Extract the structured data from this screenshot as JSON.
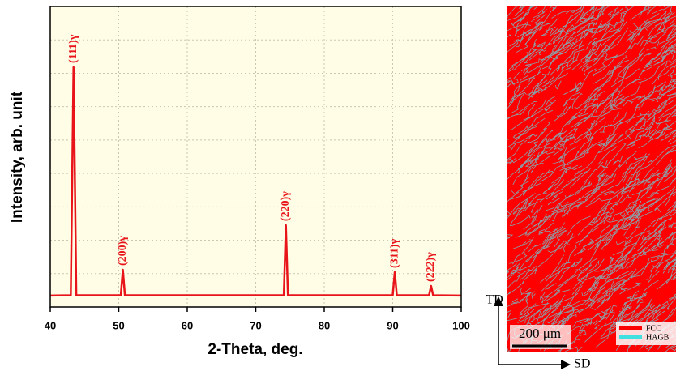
{
  "chart_data": {
    "type": "line",
    "x_label": "2-Theta, deg.",
    "y_label": "Intensity, arb. unit",
    "xlim": [
      40,
      100
    ],
    "xticks": [
      40,
      50,
      60,
      70,
      80,
      90,
      100
    ],
    "ylim": [
      0,
      100
    ],
    "grid": true,
    "background": "#fffde6",
    "series": [
      {
        "color": "#e8141a",
        "x": [
          40,
          43.0,
          43.4,
          43.8,
          50.3,
          50.6,
          50.9,
          74.1,
          74.4,
          74.7,
          90.0,
          90.3,
          90.6,
          95.3,
          95.6,
          95.9,
          100
        ],
        "values": [
          3.8,
          3.9,
          79.8,
          3.9,
          3.9,
          12.4,
          3.9,
          3.9,
          27.2,
          3.9,
          3.9,
          11.6,
          3.9,
          3.9,
          7.0,
          3.9,
          3.8
        ]
      }
    ],
    "peak_labels": [
      "(111)γ",
      "(200)γ",
      "(220)γ",
      "(311)γ",
      "(222)γ"
    ]
  },
  "map": {
    "td_label": "TD",
    "sd_label": "SD",
    "scale_bar": "200 μm",
    "legend": [
      {
        "name": "FCC",
        "color": "#ff0000"
      },
      {
        "name": "HAGB",
        "color": "#40e0e0"
      }
    ]
  }
}
